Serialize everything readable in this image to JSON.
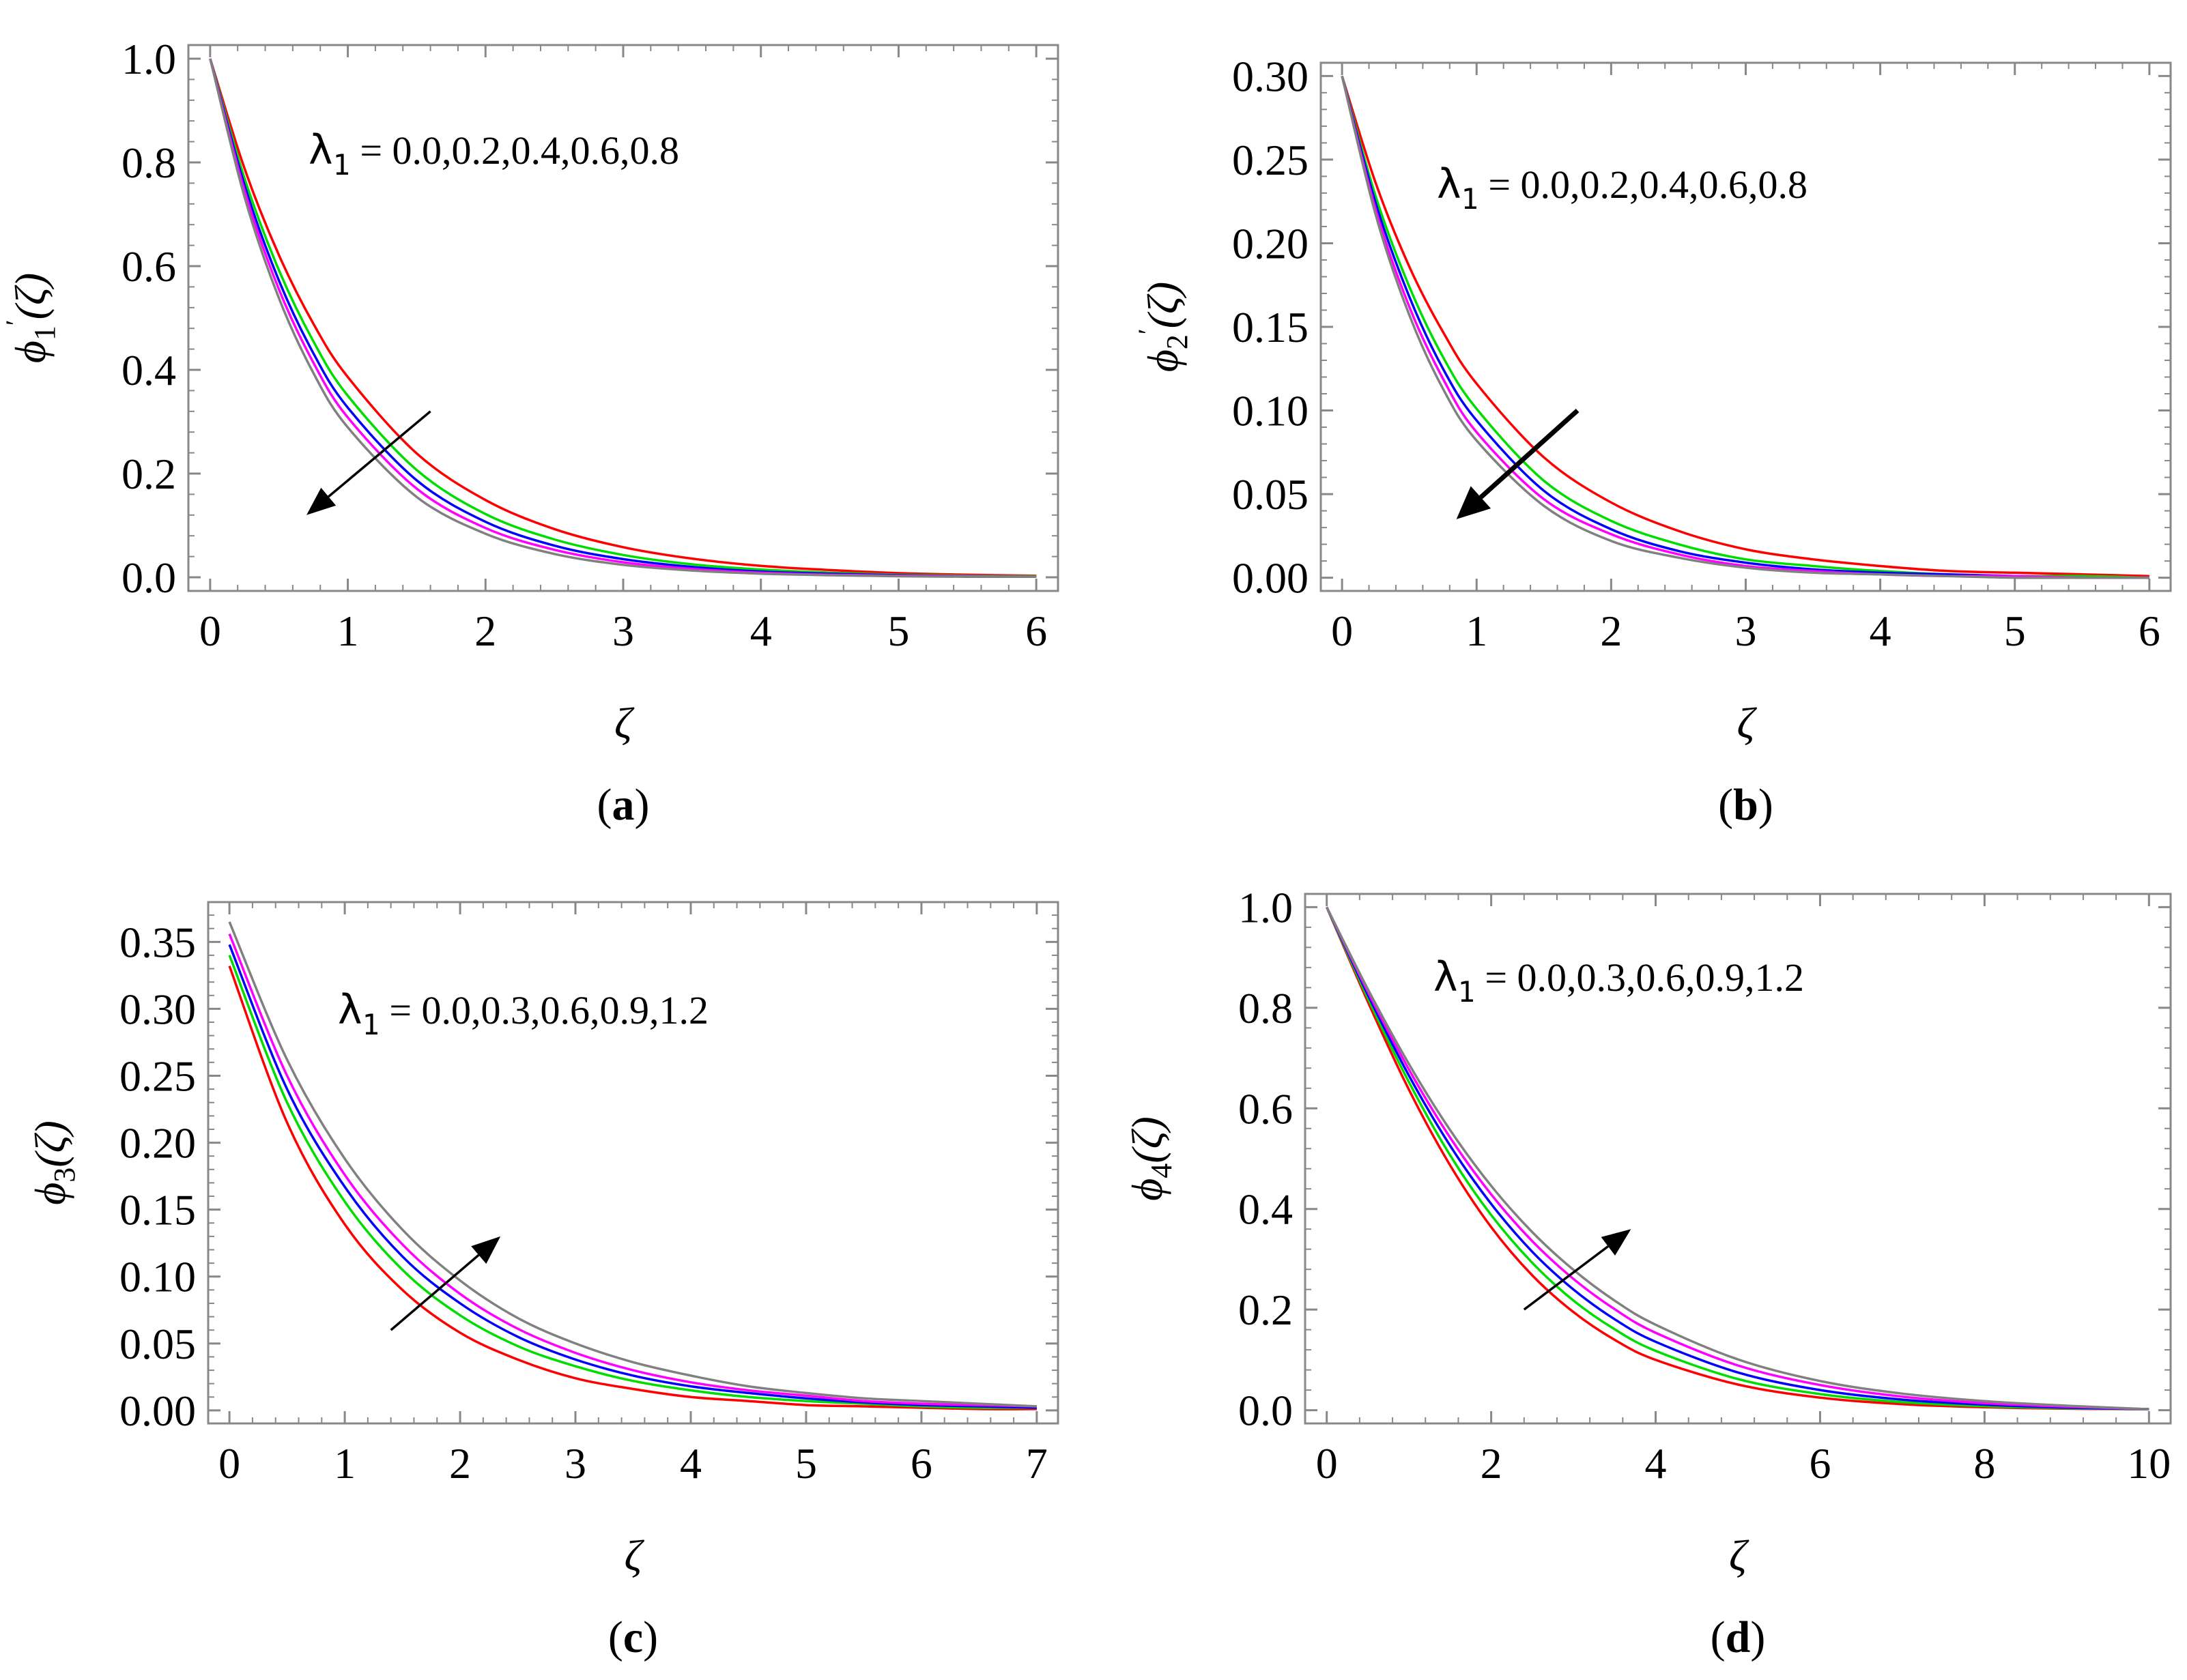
{
  "figure": {
    "chart_data": [
      {
        "type": "line",
        "panel_label": {
          "open": "(",
          "letter": "a",
          "close": ")"
        },
        "xlabel": "ζ",
        "ylabel": {
          "main": "ϕ",
          "sub": "1",
          "prime": "′",
          "arg": "(ζ)"
        },
        "annotation": {
          "symbol": "λ",
          "sub": "1",
          "text": " = 0.0,0.2,0.4,0.6,0.8"
        },
        "arrow": {
          "direction": "down-left",
          "from": [
            1.6,
            0.32
          ],
          "to": [
            0.7,
            0.12
          ],
          "style": "thin"
        },
        "xlim": [
          0,
          6
        ],
        "ylim": [
          0,
          1.0
        ],
        "xticks": [
          0,
          1,
          2,
          3,
          4,
          5,
          6
        ],
        "yticks": [
          0.0,
          0.2,
          0.4,
          0.6,
          0.8,
          1.0
        ],
        "x_tick_labels": [
          "0",
          "1",
          "2",
          "3",
          "4",
          "5",
          "6"
        ],
        "y_tick_labels": [
          "0.0",
          "0.2",
          "0.4",
          "0.6",
          "0.8",
          "1.0"
        ],
        "x": [
          0,
          0.25,
          0.5,
          0.75,
          1.0,
          1.5,
          2.0,
          2.5,
          3.0,
          3.5,
          4.0,
          4.5,
          5.0,
          5.5,
          6.0
        ],
        "series": [
          {
            "color": "#ff0000",
            "values": [
              1.0,
              0.788,
              0.621,
              0.489,
              0.386,
              0.239,
              0.149,
              0.093,
              0.058,
              0.036,
              0.022,
              0.014,
              0.008,
              0.005,
              0.003
            ]
          },
          {
            "color": "#00dd00",
            "values": [
              1.0,
              0.769,
              0.592,
              0.455,
              0.35,
              0.207,
              0.122,
              0.073,
              0.043,
              0.025,
              0.015,
              0.009,
              0.005,
              0.003,
              0.002
            ]
          },
          {
            "color": "#0000ff",
            "values": [
              1.0,
              0.756,
              0.572,
              0.432,
              0.327,
              0.187,
              0.107,
              0.061,
              0.035,
              0.02,
              0.011,
              0.007,
              0.004,
              0.002,
              0.001
            ]
          },
          {
            "color": "#ff00ff",
            "values": [
              1.0,
              0.745,
              0.555,
              0.414,
              0.308,
              0.171,
              0.095,
              0.053,
              0.029,
              0.016,
              0.009,
              0.005,
              0.003,
              0.002,
              0.001
            ]
          },
          {
            "color": "#808080",
            "values": [
              1.0,
              0.733,
              0.538,
              0.394,
              0.289,
              0.155,
              0.084,
              0.045,
              0.024,
              0.013,
              0.007,
              0.004,
              0.002,
              0.001,
              0.001
            ]
          }
        ]
      },
      {
        "type": "line",
        "panel_label": {
          "open": "(",
          "letter": "b",
          "close": ")"
        },
        "xlabel": "ζ",
        "ylabel": {
          "main": "ϕ",
          "sub": "2",
          "prime": "′",
          "arg": "(ζ)"
        },
        "annotation": {
          "symbol": "λ",
          "sub": "1",
          "text": " = 0.0,0.2,0.4,0.6,0.8"
        },
        "arrow": {
          "direction": "down-left",
          "from": [
            1.75,
            0.1
          ],
          "to": [
            0.85,
            0.035
          ],
          "style": "bold"
        },
        "xlim": [
          0,
          6
        ],
        "ylim": [
          0,
          0.3
        ],
        "xticks": [
          0,
          1,
          2,
          3,
          4,
          5,
          6
        ],
        "yticks": [
          0.0,
          0.05,
          0.1,
          0.15,
          0.2,
          0.25,
          0.3
        ],
        "x_tick_labels": [
          "0",
          "1",
          "2",
          "3",
          "4",
          "5",
          "6"
        ],
        "y_tick_labels": [
          "0.00",
          "0.05",
          "0.10",
          "0.15",
          "0.20",
          "0.25",
          "0.30"
        ],
        "x": [
          0,
          0.25,
          0.5,
          0.75,
          1.0,
          1.5,
          2.0,
          2.5,
          3.0,
          3.5,
          4.0,
          4.5,
          5.0,
          5.5,
          6.0
        ],
        "series": [
          {
            "color": "#ff0000",
            "values": [
              0.3,
              0.236,
              0.186,
              0.147,
              0.116,
              0.072,
              0.045,
              0.028,
              0.017,
              0.011,
              0.007,
              0.004,
              0.003,
              0.002,
              0.001
            ]
          },
          {
            "color": "#00dd00",
            "values": [
              0.3,
              0.228,
              0.174,
              0.132,
              0.101,
              0.058,
              0.034,
              0.02,
              0.011,
              0.007,
              0.004,
              0.002,
              0.001,
              0.001,
              0.0
            ]
          },
          {
            "color": "#0000ff",
            "values": [
              0.3,
              0.224,
              0.168,
              0.125,
              0.094,
              0.052,
              0.029,
              0.016,
              0.009,
              0.005,
              0.003,
              0.002,
              0.001,
              0.0,
              0.0
            ]
          },
          {
            "color": "#ff00ff",
            "values": [
              0.3,
              0.22,
              0.162,
              0.119,
              0.087,
              0.047,
              0.026,
              0.014,
              0.007,
              0.004,
              0.002,
              0.001,
              0.001,
              0.0,
              0.0
            ]
          },
          {
            "color": "#808080",
            "values": [
              0.3,
              0.217,
              0.157,
              0.113,
              0.082,
              0.043,
              0.022,
              0.012,
              0.006,
              0.003,
              0.002,
              0.001,
              0.0,
              0.0,
              0.0
            ]
          }
        ]
      },
      {
        "type": "line",
        "panel_label": {
          "open": "(",
          "letter": "c",
          "close": ")"
        },
        "xlabel": "ζ",
        "ylabel": {
          "main": "ϕ",
          "sub": "3",
          "prime": "",
          "arg": "(ζ)"
        },
        "annotation": {
          "symbol": "λ",
          "sub": "1",
          "text": " = 0.0,0.3,0.6,0.9,1.2"
        },
        "arrow": {
          "direction": "up-right",
          "from": [
            1.4,
            0.06
          ],
          "to": [
            2.35,
            0.13
          ],
          "style": "thin"
        },
        "xlim": [
          0,
          7
        ],
        "ylim": [
          0,
          0.37
        ],
        "xticks": [
          0,
          1,
          2,
          3,
          4,
          5,
          6,
          7
        ],
        "yticks": [
          0.0,
          0.05,
          0.1,
          0.15,
          0.2,
          0.25,
          0.3,
          0.35
        ],
        "x_tick_labels": [
          "0",
          "1",
          "2",
          "3",
          "4",
          "5",
          "6",
          "7"
        ],
        "y_tick_labels": [
          "0.00",
          "0.05",
          "0.10",
          "0.15",
          "0.20",
          "0.25",
          "0.30",
          "0.35"
        ],
        "x": [
          0,
          0.5,
          1.0,
          1.5,
          2.0,
          2.5,
          3.0,
          3.5,
          4.0,
          4.5,
          5.0,
          5.5,
          6.0,
          6.5,
          7.0
        ],
        "series": [
          {
            "color": "#ff0000",
            "values": [
              0.332,
              0.215,
              0.139,
              0.09,
              0.058,
              0.038,
              0.024,
              0.016,
              0.01,
              0.007,
              0.004,
              0.003,
              0.002,
              0.001,
              0.001
            ]
          },
          {
            "color": "#00dd00",
            "values": [
              0.34,
              0.23,
              0.156,
              0.105,
              0.071,
              0.048,
              0.033,
              0.022,
              0.015,
              0.01,
              0.007,
              0.005,
              0.003,
              0.002,
              0.002
            ]
          },
          {
            "color": "#0000ff",
            "values": [
              0.348,
              0.24,
              0.167,
              0.115,
              0.08,
              0.055,
              0.038,
              0.026,
              0.018,
              0.013,
              0.009,
              0.006,
              0.004,
              0.003,
              0.002
            ]
          },
          {
            "color": "#ff00ff",
            "values": [
              0.356,
              0.25,
              0.176,
              0.124,
              0.087,
              0.061,
              0.043,
              0.03,
              0.021,
              0.015,
              0.011,
              0.007,
              0.005,
              0.004,
              0.003
            ]
          },
          {
            "color": "#808080",
            "values": [
              0.365,
              0.262,
              0.188,
              0.135,
              0.097,
              0.069,
              0.05,
              0.036,
              0.026,
              0.018,
              0.013,
              0.009,
              0.007,
              0.005,
              0.003
            ]
          }
        ]
      },
      {
        "type": "line",
        "panel_label": {
          "open": "(",
          "letter": "d",
          "close": ")"
        },
        "xlabel": "ζ",
        "ylabel": {
          "main": "ϕ",
          "sub": "4",
          "prime": "",
          "arg": "(ζ)"
        },
        "annotation": {
          "symbol": "λ",
          "sub": "1",
          "text": " = 0.0,0.3,0.6,0.9,1.2"
        },
        "arrow": {
          "direction": "up-right",
          "from": [
            2.4,
            0.2
          ],
          "to": [
            3.7,
            0.36
          ],
          "style": "thin"
        },
        "xlim": [
          0,
          10
        ],
        "ylim": [
          0,
          1.0
        ],
        "xticks": [
          0,
          2,
          4,
          6,
          8,
          10
        ],
        "yticks": [
          0.0,
          0.2,
          0.4,
          0.6,
          0.8,
          1.0
        ],
        "x_tick_labels": [
          "0",
          "2",
          "4",
          "6",
          "8",
          "10"
        ],
        "y_tick_labels": [
          "0.0",
          "0.2",
          "0.4",
          "0.6",
          "0.8",
          "1.0"
        ],
        "x": [
          0,
          0.5,
          1.0,
          1.5,
          2.0,
          2.5,
          3.0,
          3.5,
          4.0,
          5.0,
          6.0,
          7.0,
          8.0,
          9.0,
          10.0
        ],
        "series": [
          {
            "color": "#ff0000",
            "values": [
              1.0,
              0.812,
              0.637,
              0.487,
              0.364,
              0.268,
              0.195,
              0.14,
              0.1,
              0.051,
              0.025,
              0.012,
              0.006,
              0.003,
              0.002
            ]
          },
          {
            "color": "#00dd00",
            "values": [
              1.0,
              0.819,
              0.652,
              0.507,
              0.388,
              0.293,
              0.218,
              0.161,
              0.118,
              0.062,
              0.032,
              0.016,
              0.008,
              0.004,
              0.002
            ]
          },
          {
            "color": "#0000ff",
            "values": [
              1.0,
              0.826,
              0.665,
              0.526,
              0.41,
              0.315,
              0.24,
              0.181,
              0.136,
              0.075,
              0.04,
              0.021,
              0.011,
              0.005,
              0.002
            ]
          },
          {
            "color": "#ff00ff",
            "values": [
              1.0,
              0.832,
              0.677,
              0.542,
              0.429,
              0.336,
              0.261,
              0.201,
              0.154,
              0.089,
              0.05,
              0.027,
              0.014,
              0.007,
              0.002
            ]
          },
          {
            "color": "#808080",
            "values": [
              1.0,
              0.837,
              0.688,
              0.557,
              0.446,
              0.354,
              0.279,
              0.218,
              0.17,
              0.101,
              0.058,
              0.033,
              0.018,
              0.009,
              0.002
            ]
          }
        ]
      }
    ]
  }
}
